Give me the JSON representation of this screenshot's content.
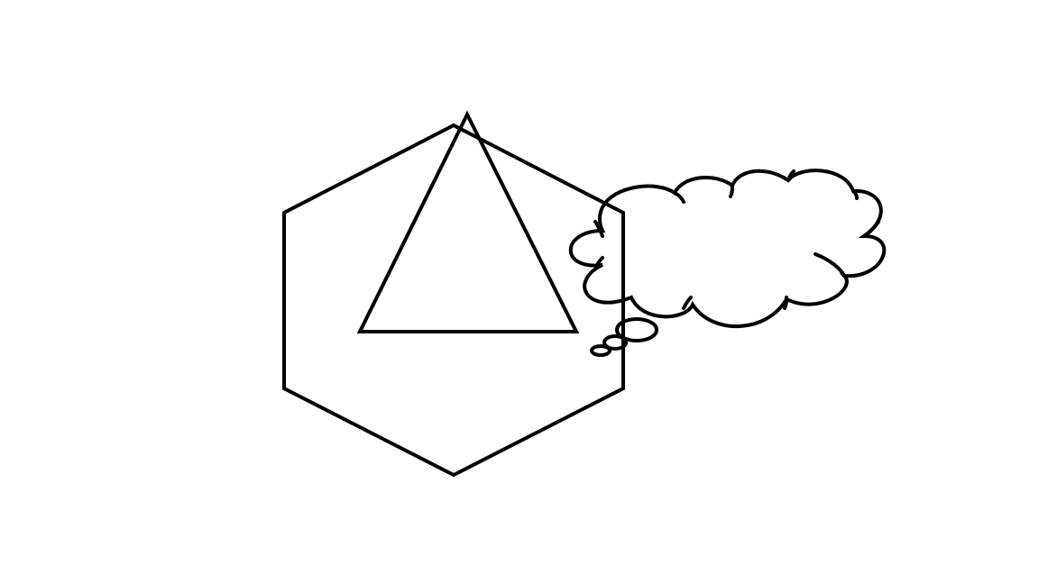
{
  "canvas": {
    "background_color": "#ffffff",
    "stroke_color": "#000000"
  },
  "shapes": [
    {
      "name": "hexagon",
      "kind": "regular-hexagon",
      "filled": false
    },
    {
      "name": "triangle",
      "kind": "triangle",
      "filled": false
    },
    {
      "name": "thought-bubble",
      "kind": "cloud-callout",
      "filled": false,
      "tail_bubbles": 3
    }
  ]
}
